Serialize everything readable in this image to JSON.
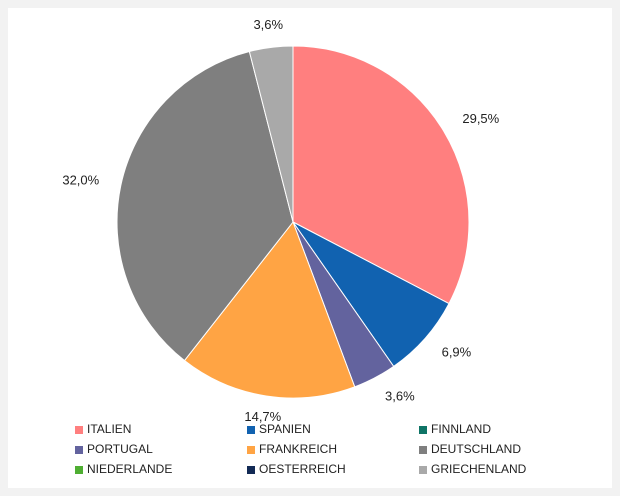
{
  "chart_data": {
    "type": "pie",
    "categories": [
      "ITALIEN",
      "SPANIEN",
      "FINNLAND",
      "PORTUGAL",
      "FRANKREICH",
      "DEUTSCHLAND",
      "NIEDERLANDE",
      "OESTERREICH",
      "GRIECHENLAND"
    ],
    "values": [
      29.5,
      6.9,
      0,
      3.6,
      14.7,
      32.0,
      0,
      0,
      3.6
    ],
    "value_labels": [
      "29,5%",
      "6,9%",
      null,
      "3,6%",
      "14,7%",
      "32,0%",
      null,
      null,
      "3,6%"
    ],
    "colors": [
      "#ff7f7f",
      "#1162b0",
      "#0f7466",
      "#63639e",
      "#ffa444",
      "#7f7f7f",
      "#4fae32",
      "#122a55",
      "#a9a9a9"
    ],
    "legend": "bottom"
  }
}
